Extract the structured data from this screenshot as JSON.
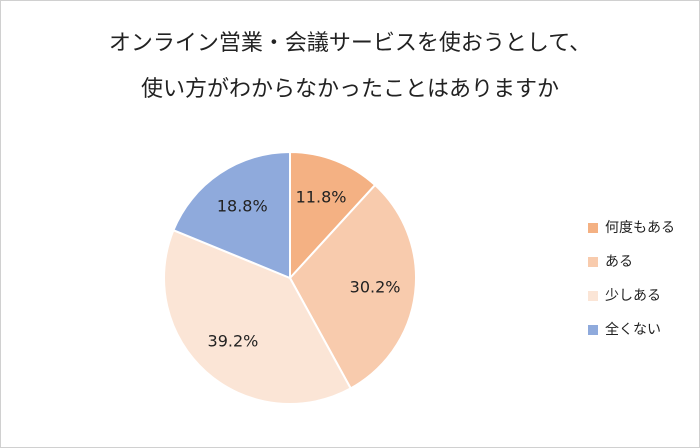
{
  "chart_data": {
    "type": "pie",
    "title": [
      "オンライン営業・会議サービスを使おうとして、",
      "使い方がわからなかったことはありますか"
    ],
    "categories": [
      "何度もある",
      "ある",
      "少しある",
      "全くない"
    ],
    "values": [
      11.8,
      30.2,
      39.2,
      18.8
    ],
    "value_labels": [
      "11.8%",
      "30.2%",
      "39.2%",
      "18.8%"
    ],
    "colors": [
      "#f4b183",
      "#f8cbad",
      "#fbe5d6",
      "#8faadc"
    ],
    "legend": "right"
  }
}
